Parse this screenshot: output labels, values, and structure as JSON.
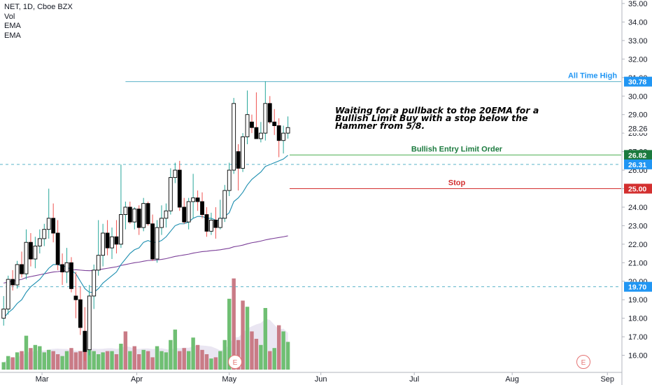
{
  "legend": {
    "symbol_line": "NET, 1D, Cboe BZX",
    "vol_label": "Vol",
    "ema1_label": "EMA",
    "ema2_label": "EMA"
  },
  "colors": {
    "up": "#26a69a",
    "down": "#000000",
    "body_up": "#ffffff",
    "wick_up": "#26a69a",
    "wick_down": "#ef5350",
    "ema_fast": "#1e8fb0",
    "ema_slow": "#7b3f98",
    "vol_up": "#6fbf73",
    "vol_down": "#c97b86",
    "vol_ma_area": "#d8d2e8",
    "ath": "#5bb3c9",
    "ath_tag": "#2196f3",
    "entry": "#4caf50",
    "entry_tag": "#1b7a3e",
    "stop": "#d32f2f",
    "stop_tag": "#d32f2f",
    "dashed": "#5bb3c9",
    "earnings": "#e57373"
  },
  "chart_data": {
    "type": "candlestick",
    "title": "NET, 1D, Cboe BZX",
    "y_axis": {
      "ylim": [
        15.5,
        35.2
      ],
      "ticks": [
        "16.00",
        "17.00",
        "18.00",
        "19.00",
        "20.00",
        "21.00",
        "22.00",
        "23.00",
        "24.00",
        "25.00",
        "26.00",
        "27.00",
        "28.00",
        "29.00",
        "30.00",
        "31.00",
        "32.00",
        "33.00",
        "34.00",
        "35.00"
      ]
    },
    "x_axis": {
      "labels": [
        {
          "text": "Mar",
          "bar": 8.5
        },
        {
          "text": "Apr",
          "bar": 29.5
        },
        {
          "text": "May",
          "bar": 50
        },
        {
          "text": "Jun",
          "bar": 70.3
        },
        {
          "text": "Jul",
          "bar": 91
        },
        {
          "text": "Aug",
          "bar": 112.7
        },
        {
          "text": "Sep",
          "bar": 133.8
        }
      ],
      "bar_count_visible": 148
    },
    "candles": [
      [
        18.0,
        19.2,
        17.6,
        18.5
      ],
      [
        18.5,
        20.3,
        18.2,
        20.1
      ],
      [
        20.1,
        20.6,
        19.5,
        19.8
      ],
      [
        19.8,
        21.1,
        19.6,
        20.9
      ],
      [
        20.9,
        21.6,
        20.2,
        20.4
      ],
      [
        20.4,
        22.8,
        20.1,
        22.1
      ],
      [
        22.1,
        22.6,
        20.8,
        21.2
      ],
      [
        21.2,
        22.4,
        20.7,
        21.9
      ],
      [
        21.9,
        22.8,
        21.5,
        22.3
      ],
      [
        22.3,
        23.1,
        21.9,
        22.8
      ],
      [
        22.8,
        25.0,
        22.3,
        23.4
      ],
      [
        23.4,
        24.2,
        22.1,
        22.6
      ],
      [
        22.6,
        23.3,
        20.6,
        20.9
      ],
      [
        20.9,
        21.5,
        19.8,
        20.5
      ],
      [
        20.5,
        21.8,
        19.9,
        21.0
      ],
      [
        21.0,
        21.3,
        19.4,
        19.6
      ],
      [
        19.2,
        20.5,
        18.0,
        19.0
      ],
      [
        19.0,
        19.7,
        17.1,
        17.5
      ],
      [
        17.3,
        18.6,
        15.7,
        16.2
      ],
      [
        16.3,
        19.8,
        16.0,
        19.2
      ],
      [
        19.2,
        20.9,
        18.5,
        20.6
      ],
      [
        20.6,
        23.3,
        20.3,
        21.4
      ],
      [
        21.4,
        23.1,
        20.8,
        22.6
      ],
      [
        22.6,
        23.3,
        21.4,
        21.8
      ],
      [
        21.8,
        22.9,
        21.2,
        22.4
      ],
      [
        22.4,
        23.3,
        21.5,
        22.0
      ],
      [
        22.0,
        26.3,
        21.8,
        23.6
      ],
      [
        23.6,
        24.3,
        22.8,
        24.0
      ],
      [
        24.0,
        24.3,
        23.1,
        23.2
      ],
      [
        23.2,
        24.0,
        22.8,
        23.9
      ],
      [
        23.9,
        24.1,
        22.5,
        22.9
      ],
      [
        22.9,
        24.5,
        22.7,
        24.2
      ],
      [
        24.2,
        24.3,
        23.0,
        23.1
      ],
      [
        23.1,
        23.6,
        21.1,
        21.2
      ],
      [
        21.2,
        23.3,
        21.0,
        22.9
      ],
      [
        22.9,
        24.1,
        22.5,
        23.4
      ],
      [
        23.4,
        24.2,
        22.9,
        23.8
      ],
      [
        23.8,
        26.1,
        23.6,
        25.6
      ],
      [
        25.6,
        26.4,
        25.3,
        26.0
      ],
      [
        26.0,
        26.5,
        23.8,
        24.0
      ],
      [
        24.0,
        24.5,
        23.1,
        23.2
      ],
      [
        23.2,
        24.5,
        22.8,
        24.3
      ],
      [
        24.3,
        25.8,
        23.4,
        24.5
      ],
      [
        24.5,
        24.9,
        23.8,
        24.3
      ],
      [
        24.3,
        24.8,
        23.4,
        23.6
      ],
      [
        23.6,
        24.0,
        22.4,
        22.7
      ],
      [
        22.7,
        23.7,
        22.5,
        23.3
      ],
      [
        23.3,
        24.0,
        22.3,
        22.9
      ],
      [
        22.9,
        24.4,
        22.8,
        23.4
      ],
      [
        23.4,
        25.2,
        23.2,
        24.9
      ],
      [
        24.9,
        26.4,
        24.6,
        26.0
      ],
      [
        26.0,
        29.9,
        25.8,
        29.6
      ],
      [
        27.0,
        27.4,
        24.9,
        26.1
      ],
      [
        26.1,
        28.0,
        25.9,
        27.8
      ],
      [
        27.8,
        30.3,
        27.4,
        29.0
      ],
      [
        28.6,
        29.0,
        28.0,
        28.3
      ],
      [
        28.3,
        30.2,
        27.8,
        27.7
      ],
      [
        27.7,
        28.6,
        27.5,
        28.0
      ],
      [
        28.0,
        30.8,
        27.6,
        29.6
      ],
      [
        29.6,
        30.0,
        28.5,
        28.6
      ],
      [
        28.6,
        29.3,
        27.9,
        28.4
      ],
      [
        28.4,
        28.8,
        26.7,
        27.6
      ],
      [
        27.6,
        28.4,
        26.9,
        28.0
      ],
      [
        28.0,
        28.9,
        27.7,
        28.3
      ]
    ],
    "volume": [
      {
        "v": 0.12,
        "up": true
      },
      {
        "v": 0.22,
        "up": true
      },
      {
        "v": 0.2,
        "up": false
      },
      {
        "v": 0.28,
        "up": true
      },
      {
        "v": 0.3,
        "up": false
      },
      {
        "v": 0.55,
        "up": true
      },
      {
        "v": 0.35,
        "up": false
      },
      {
        "v": 0.4,
        "up": true
      },
      {
        "v": 0.38,
        "up": true
      },
      {
        "v": 0.28,
        "up": true
      },
      {
        "v": 0.32,
        "up": true
      },
      {
        "v": 0.3,
        "up": false
      },
      {
        "v": 0.25,
        "up": false
      },
      {
        "v": 0.22,
        "up": true
      },
      {
        "v": 0.3,
        "up": true
      },
      {
        "v": 0.35,
        "up": false
      },
      {
        "v": 0.28,
        "up": false
      },
      {
        "v": 0.3,
        "up": false
      },
      {
        "v": 0.45,
        "up": false
      },
      {
        "v": 0.65,
        "up": true
      },
      {
        "v": 0.3,
        "up": true
      },
      {
        "v": 0.25,
        "up": true
      },
      {
        "v": 0.28,
        "up": true
      },
      {
        "v": 0.3,
        "up": false
      },
      {
        "v": 0.3,
        "up": true
      },
      {
        "v": 0.25,
        "up": false
      },
      {
        "v": 0.42,
        "up": true
      },
      {
        "v": 0.62,
        "up": false
      },
      {
        "v": 0.3,
        "up": true
      },
      {
        "v": 0.38,
        "up": false
      },
      {
        "v": 0.25,
        "up": false
      },
      {
        "v": 0.32,
        "up": true
      },
      {
        "v": 0.3,
        "up": false
      },
      {
        "v": 0.2,
        "up": false
      },
      {
        "v": 0.38,
        "up": true
      },
      {
        "v": 0.3,
        "up": true
      },
      {
        "v": 0.28,
        "up": true
      },
      {
        "v": 0.48,
        "up": true
      },
      {
        "v": 0.65,
        "up": true
      },
      {
        "v": 0.3,
        "up": false
      },
      {
        "v": 0.35,
        "up": false
      },
      {
        "v": 0.3,
        "up": true
      },
      {
        "v": 0.52,
        "up": true
      },
      {
        "v": 0.4,
        "up": false
      },
      {
        "v": 0.32,
        "up": false
      },
      {
        "v": 0.25,
        "up": false
      },
      {
        "v": 0.18,
        "up": true
      },
      {
        "v": 0.2,
        "up": false
      },
      {
        "v": 0.3,
        "up": true
      },
      {
        "v": 0.48,
        "up": true
      },
      {
        "v": 1.15,
        "up": true
      },
      {
        "v": 1.48,
        "up": false
      },
      {
        "v": 0.48,
        "up": false
      },
      {
        "v": 1.12,
        "up": false
      },
      {
        "v": 1.02,
        "up": true
      },
      {
        "v": 0.62,
        "up": false
      },
      {
        "v": 0.5,
        "up": false
      },
      {
        "v": 0.4,
        "up": true
      },
      {
        "v": 1.0,
        "up": true
      },
      {
        "v": 0.3,
        "up": false
      },
      {
        "v": 0.35,
        "up": true
      },
      {
        "v": 0.72,
        "up": false
      },
      {
        "v": 0.62,
        "up": true
      },
      {
        "v": 0.45,
        "up": true
      }
    ],
    "ema_fast": [
      18.0,
      18.3,
      18.5,
      18.8,
      19.0,
      19.4,
      19.7,
      19.9,
      20.1,
      20.4,
      20.7,
      20.9,
      20.9,
      20.8,
      20.8,
      20.6,
      20.4,
      20.0,
      19.6,
      19.4,
      19.4,
      19.6,
      19.9,
      20.1,
      20.3,
      20.5,
      20.9,
      21.2,
      21.5,
      21.7,
      21.8,
      22.1,
      22.2,
      22.1,
      22.1,
      22.2,
      22.4,
      22.7,
      23.0,
      23.1,
      23.1,
      23.2,
      23.4,
      23.5,
      23.5,
      23.4,
      23.4,
      23.3,
      23.3,
      23.5,
      23.7,
      24.3,
      24.5,
      24.8,
      25.2,
      25.5,
      25.7,
      25.9,
      26.2,
      26.3,
      26.4,
      26.5,
      26.6,
      26.8
    ],
    "ema_slow": [
      19.9,
      19.95,
      20.0,
      20.05,
      20.1,
      20.2,
      20.25,
      20.3,
      20.35,
      20.4,
      20.45,
      20.5,
      20.52,
      20.55,
      20.58,
      20.6,
      20.62,
      20.6,
      20.58,
      20.57,
      20.58,
      20.62,
      20.66,
      20.7,
      20.74,
      20.78,
      20.85,
      20.9,
      20.95,
      21.0,
      21.03,
      21.08,
      21.12,
      21.13,
      21.15,
      21.18,
      21.22,
      21.28,
      21.34,
      21.38,
      21.42,
      21.46,
      21.52,
      21.56,
      21.6,
      21.62,
      21.65,
      21.67,
      21.7,
      21.74,
      21.78,
      21.86,
      21.9,
      21.95,
      22.02,
      22.08,
      22.12,
      22.17,
      22.23,
      22.28,
      22.32,
      22.36,
      22.4,
      22.45
    ],
    "hlines": [
      {
        "name": "All Time High",
        "price": 30.78,
        "tag": "30.78",
        "from_bar": 27,
        "kind": "ath"
      },
      {
        "name": "Bullish Entry Limit Order",
        "price": 26.82,
        "tag": "26.82",
        "from_bar": 62,
        "kind": "entry"
      },
      {
        "name": "Stop",
        "price": 25.0,
        "tag": "25.00",
        "from_bar": 62,
        "kind": "stop"
      }
    ],
    "dashed_lines": [
      {
        "price": 26.31,
        "tag": "26.31"
      },
      {
        "price": 19.7,
        "tag": "19.70"
      }
    ],
    "last_price": {
      "price": 28.26,
      "tag": "28.26"
    },
    "annotation": {
      "lines": [
        "Waiting for a pullback to the 20EMA for a",
        "Bullish Limit Buy with a stop below the",
        "Hammer from 5/8."
      ]
    },
    "earnings_markers": [
      {
        "bar": 50,
        "label": "E"
      },
      {
        "bar": 124,
        "label": "E"
      }
    ]
  }
}
